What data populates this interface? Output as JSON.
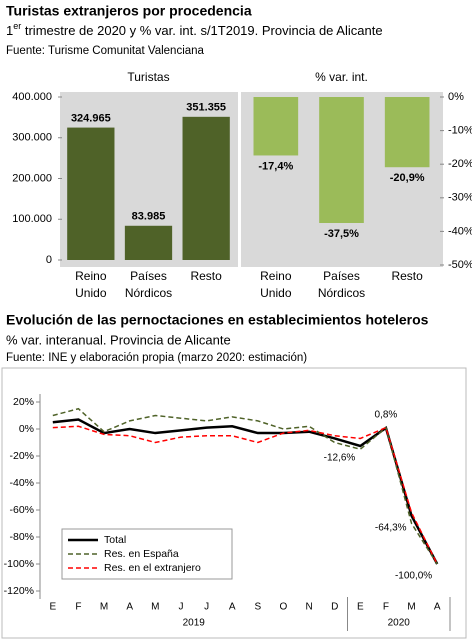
{
  "top_header": {
    "title": "Turistas extranjeros por procedencia",
    "subtitle": {
      "number": "1",
      "ordinal": "er",
      "rest": " trimestre de 2020 y % var. int. s/1T2019. Provincia de Alicante"
    },
    "source": "Fuente: Turisme Comunitat Valenciana"
  },
  "chart_data": [
    {
      "type": "bar",
      "title": "Turistas",
      "categories": [
        "Reino Unido",
        "Países Nórdicos",
        "Resto"
      ],
      "values": [
        324965,
        83985,
        351355
      ],
      "value_labels": [
        "324.965",
        "83.985",
        "351.355"
      ],
      "color": "#4f6228",
      "ylim": [
        0,
        400000
      ],
      "yticks": [
        0,
        {
          "value": 100000,
          "label": "100.000"
        },
        {
          "value": 200000,
          "label": "200.000"
        },
        {
          "value": 300000,
          "label": "300.000"
        },
        {
          "value": 400000,
          "label": "400.000"
        }
      ],
      "axis_side": "left",
      "grid": false
    },
    {
      "type": "bar",
      "title": "% var. int.",
      "categories": [
        "Reino Unido",
        "Países Nórdicos",
        "Resto"
      ],
      "values": [
        -17.4,
        -37.5,
        -20.9
      ],
      "value_labels": [
        "-17,4%",
        "-37,5%",
        "-20,9%"
      ],
      "color": "#9bbb59",
      "ylim": [
        -50,
        0
      ],
      "yticks": [
        {
          "value": 0,
          "label": "0%"
        },
        {
          "value": -10,
          "label": "-10%"
        },
        {
          "value": -20,
          "label": "-20%"
        },
        {
          "value": -30,
          "label": "-30%"
        },
        {
          "value": -40,
          "label": "-40%"
        },
        {
          "value": -50,
          "label": "-50%"
        }
      ],
      "axis_side": "right",
      "grid": false
    },
    {
      "type": "line",
      "title": "Evolución de las pernoctaciones en establecimientos hoteleros",
      "subtitle": "% var. interanual. Provincia de Alicante",
      "source": "Fuente: INE y elaboración propia (marzo 2020: estimación)",
      "groups": [
        {
          "label": "2019",
          "categories": [
            "E",
            "F",
            "M",
            "A",
            "M",
            "J",
            "J",
            "A",
            "S",
            "O",
            "N",
            "D"
          ]
        },
        {
          "label": "2020",
          "categories": [
            "E",
            "F",
            "M",
            "A"
          ]
        }
      ],
      "series": [
        {
          "name": "Total",
          "color": "#000000",
          "dash": "solid",
          "values": [
            5,
            7,
            -3,
            0,
            -3,
            -1,
            1,
            2,
            -3,
            -3,
            -2,
            -7,
            -12.6,
            0.8,
            -64.3,
            -100
          ],
          "value_labels": [
            null,
            null,
            null,
            null,
            null,
            null,
            null,
            null,
            null,
            null,
            null,
            null,
            "-12,6%",
            "0,8%",
            "-64,3%",
            "-100,0%"
          ]
        },
        {
          "name": "Res. en España",
          "color": "#4f6228",
          "dash": "dashed",
          "values": [
            10,
            15,
            -2,
            6,
            10,
            8,
            6,
            9,
            6,
            0,
            2,
            -10,
            -15,
            1,
            -70,
            -100
          ]
        },
        {
          "name": "Res. en el extranjero",
          "color": "#ff0000",
          "dash": "dashed",
          "values": [
            1,
            2,
            -4,
            -5,
            -10,
            -6,
            -5,
            -5,
            -10,
            -3,
            -1,
            -5,
            -7,
            1,
            -62,
            -100
          ]
        }
      ],
      "ylim": [
        -120,
        20
      ],
      "yticks": [
        {
          "value": 20,
          "label": "20%"
        },
        {
          "value": 0,
          "label": "0%"
        },
        {
          "value": -20,
          "label": "-20%"
        },
        {
          "value": -40,
          "label": "-40%"
        },
        {
          "value": -60,
          "label": "-60%"
        },
        {
          "value": -80,
          "label": "-80%"
        },
        {
          "value": -100,
          "label": "-100%"
        },
        {
          "value": -120,
          "label": "-120%"
        }
      ],
      "legend": "lower left",
      "grid": false
    }
  ]
}
